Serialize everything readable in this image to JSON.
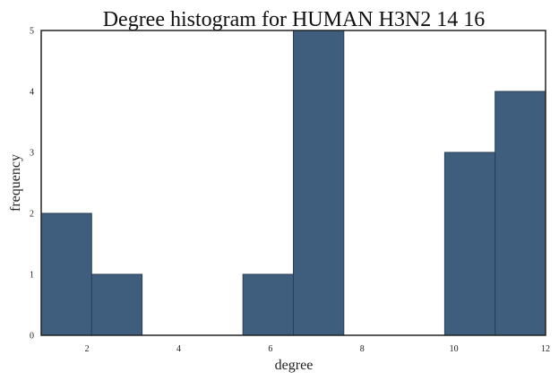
{
  "chart_data": {
    "type": "bar",
    "title": "Degree histogram for HUMAN  H3N2  14  16",
    "xlabel": "degree",
    "ylabel": "frequency",
    "xlim": [
      1,
      12
    ],
    "ylim": [
      0,
      5
    ],
    "xticks": [
      2,
      4,
      6,
      8,
      10,
      12
    ],
    "yticks": [
      0,
      1,
      2,
      3,
      4,
      5
    ],
    "bins": [
      {
        "start": 1.0,
        "end": 2.1,
        "count": 2
      },
      {
        "start": 2.1,
        "end": 3.2,
        "count": 1
      },
      {
        "start": 3.2,
        "end": 4.3,
        "count": 0
      },
      {
        "start": 4.3,
        "end": 5.4,
        "count": 0
      },
      {
        "start": 5.4,
        "end": 6.5,
        "count": 1
      },
      {
        "start": 6.5,
        "end": 7.6,
        "count": 5
      },
      {
        "start": 7.6,
        "end": 8.7,
        "count": 0
      },
      {
        "start": 8.7,
        "end": 9.8,
        "count": 0
      },
      {
        "start": 9.8,
        "end": 10.9,
        "count": 3
      },
      {
        "start": 10.9,
        "end": 12.0,
        "count": 4
      }
    ],
    "bar_color": "#3f5e7d",
    "grid": false,
    "legend": "none"
  }
}
